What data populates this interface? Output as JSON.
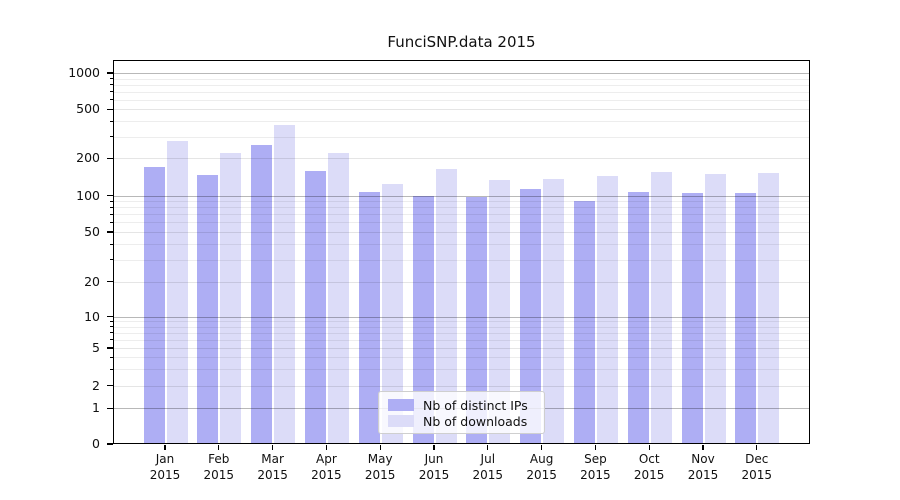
{
  "chart_data": {
    "type": "bar",
    "title": "FunciSNP.data 2015",
    "xlabel": "",
    "ylabel": "",
    "yscale": "log-like",
    "ylim": [
      0,
      1000
    ],
    "grid": true,
    "legend_position": "lower-center-inside",
    "categories": [
      "Jan",
      "Feb",
      "Mar",
      "Apr",
      "May",
      "Jun",
      "Jul",
      "Aug",
      "Sep",
      "Oct",
      "Nov",
      "Dec"
    ],
    "category_sublabel": "2015",
    "yticks": [
      0,
      1,
      2,
      5,
      10,
      20,
      50,
      100,
      200,
      500,
      1000
    ],
    "series": [
      {
        "name": "Nb of distinct IPs",
        "color": "#aeaef4",
        "values": [
          170,
          147,
          256,
          157,
          108,
          100,
          98,
          113,
          90,
          107,
          106,
          106
        ]
      },
      {
        "name": "Nb of downloads",
        "color": "#dcdcf8",
        "values": [
          276,
          221,
          373,
          222,
          125,
          164,
          133,
          136,
          144,
          154,
          149,
          151
        ]
      }
    ]
  }
}
